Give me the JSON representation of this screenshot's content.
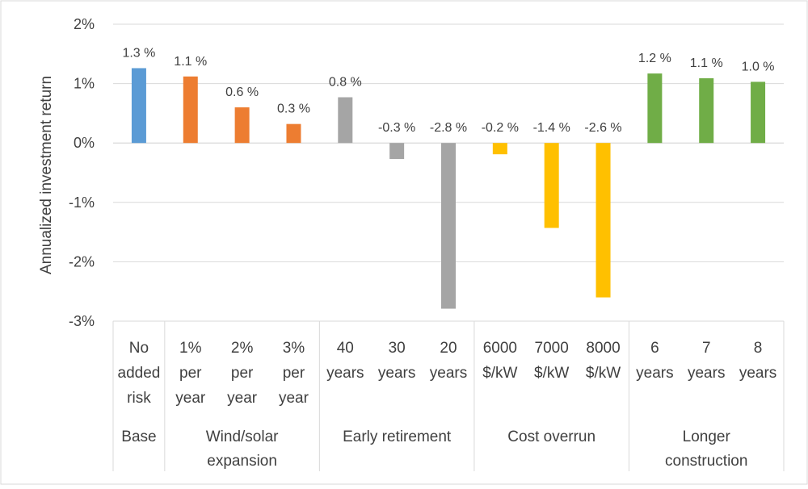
{
  "chart_data": {
    "type": "bar",
    "ylabel": "Annualized investment return",
    "ylim": [
      -3,
      2
    ],
    "y_ticks": [
      "2%",
      "1%",
      "0%",
      "-1%",
      "-2%",
      "-3%"
    ],
    "y_tick_values": [
      2,
      1,
      0,
      -1,
      -2,
      -3
    ],
    "grid": true,
    "bars": [
      {
        "category": [
          "No",
          "added",
          "risk"
        ],
        "group": 0,
        "value": 1.26,
        "label": "1.3 %",
        "color": "#5B9BD5"
      },
      {
        "category": [
          "1%",
          "per",
          "year"
        ],
        "group": 1,
        "value": 1.12,
        "label": "1.1 %",
        "color": "#ED7D31"
      },
      {
        "category": [
          "2%",
          "per",
          "year"
        ],
        "group": 1,
        "value": 0.6,
        "label": "0.6 %",
        "color": "#ED7D31"
      },
      {
        "category": [
          "3%",
          "per",
          "year"
        ],
        "group": 1,
        "value": 0.32,
        "label": "0.3 %",
        "color": "#ED7D31"
      },
      {
        "category": [
          "40",
          "years"
        ],
        "group": 2,
        "value": 0.77,
        "label": "0.8 %",
        "color": "#A5A5A5"
      },
      {
        "category": [
          "30",
          "years"
        ],
        "group": 2,
        "value": -0.27,
        "label": "-0.3 %",
        "color": "#A5A5A5"
      },
      {
        "category": [
          "20",
          "years"
        ],
        "group": 2,
        "value": -2.79,
        "label": "-2.8 %",
        "color": "#A5A5A5"
      },
      {
        "category": [
          "6000",
          "$/kW"
        ],
        "group": 3,
        "value": -0.19,
        "label": "-0.2 %",
        "color": "#FFC000"
      },
      {
        "category": [
          "7000",
          "$/kW"
        ],
        "group": 3,
        "value": -1.43,
        "label": "-1.4 %",
        "color": "#FFC000"
      },
      {
        "category": [
          "8000",
          "$/kW"
        ],
        "group": 3,
        "value": -2.6,
        "label": "-2.6 %",
        "color": "#FFC000"
      },
      {
        "category": [
          "6",
          "years"
        ],
        "group": 4,
        "value": 1.17,
        "label": "1.2 %",
        "color": "#70AD47"
      },
      {
        "category": [
          "7",
          "years"
        ],
        "group": 4,
        "value": 1.09,
        "label": "1.1 %",
        "color": "#70AD47"
      },
      {
        "category": [
          "8",
          "years"
        ],
        "group": 4,
        "value": 1.03,
        "label": "1.0 %",
        "color": "#70AD47"
      }
    ],
    "groups": [
      {
        "lines": [
          "Base"
        ]
      },
      {
        "lines": [
          "Wind/solar",
          "expansion"
        ]
      },
      {
        "lines": [
          "Early retirement"
        ]
      },
      {
        "lines": [
          "Cost overrun"
        ]
      },
      {
        "lines": [
          "Longer",
          "construction"
        ]
      }
    ]
  }
}
